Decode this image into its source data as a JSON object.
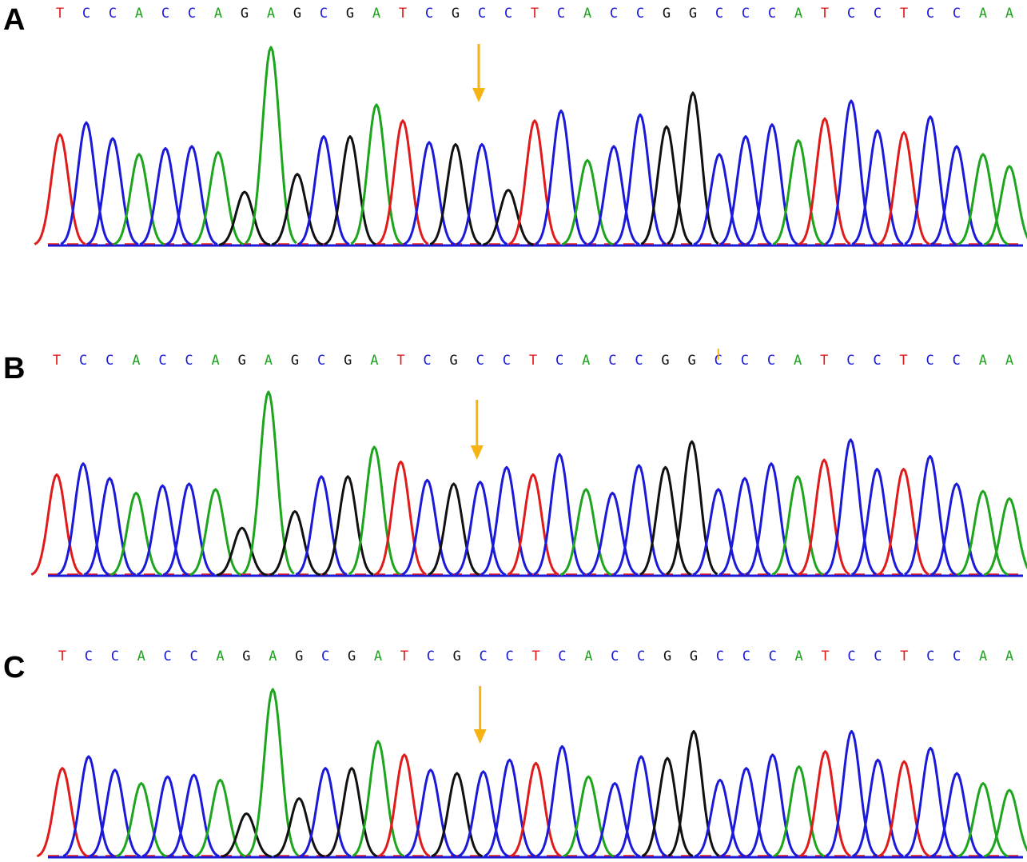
{
  "colors": {
    "A": "#1ea51e",
    "C": "#1a1ad8",
    "G": "#111111",
    "T": "#e01b1b",
    "arrow": "#f5b414"
  },
  "panels": [
    {
      "label": "A",
      "sequence": [
        "T",
        "C",
        "C",
        "A",
        "C",
        "C",
        "A",
        "G",
        "A",
        "G",
        "C",
        "G",
        "A",
        "T",
        "C",
        "G",
        "C",
        "C",
        "T",
        "C",
        "A",
        "C",
        "C",
        "G",
        "G",
        "C",
        "C",
        "C",
        "A",
        "T",
        "C",
        "C",
        "T",
        "C",
        "C",
        "A",
        "A"
      ],
      "peak_bases": [
        "T",
        "C",
        "C",
        "A",
        "C",
        "C",
        "A",
        "G",
        "A",
        "G",
        "C",
        "G",
        "A",
        "T",
        "C",
        "G",
        "C",
        "G",
        "T",
        "C",
        "A",
        "C",
        "C",
        "G",
        "G",
        "C",
        "C",
        "C",
        "A",
        "T",
        "C",
        "C",
        "T",
        "C",
        "C",
        "A",
        "A"
      ],
      "peak_heights": [
        0.56,
        0.62,
        0.54,
        0.46,
        0.49,
        0.5,
        0.47,
        0.27,
        1.0,
        0.36,
        0.55,
        0.55,
        0.71,
        0.63,
        0.52,
        0.51,
        0.51,
        0.28,
        0.63,
        0.68,
        0.43,
        0.5,
        0.66,
        0.6,
        0.77,
        0.46,
        0.55,
        0.61,
        0.53,
        0.64,
        0.73,
        0.58,
        0.57,
        0.65,
        0.5,
        0.46,
        0.4
      ],
      "arrow_index": 16,
      "tick_index": null
    },
    {
      "label": "B",
      "sequence": [
        "T",
        "C",
        "C",
        "A",
        "C",
        "C",
        "A",
        "G",
        "A",
        "G",
        "C",
        "G",
        "A",
        "T",
        "C",
        "G",
        "C",
        "C",
        "T",
        "C",
        "A",
        "C",
        "C",
        "G",
        "G",
        "C",
        "C",
        "C",
        "A",
        "T",
        "C",
        "C",
        "T",
        "C",
        "C",
        "A",
        "A"
      ],
      "peak_bases": [
        "T",
        "C",
        "C",
        "A",
        "C",
        "C",
        "A",
        "G",
        "A",
        "G",
        "C",
        "G",
        "A",
        "T",
        "C",
        "G",
        "C",
        "C",
        "T",
        "C",
        "A",
        "C",
        "C",
        "G",
        "G",
        "C",
        "C",
        "C",
        "A",
        "T",
        "C",
        "C",
        "T",
        "C",
        "C",
        "A",
        "A"
      ],
      "peak_heights": [
        0.55,
        0.61,
        0.53,
        0.45,
        0.49,
        0.5,
        0.47,
        0.26,
        1.0,
        0.35,
        0.54,
        0.54,
        0.7,
        0.62,
        0.52,
        0.5,
        0.51,
        0.59,
        0.55,
        0.66,
        0.47,
        0.45,
        0.6,
        0.59,
        0.73,
        0.47,
        0.53,
        0.61,
        0.54,
        0.63,
        0.74,
        0.58,
        0.58,
        0.65,
        0.5,
        0.46,
        0.42
      ],
      "arrow_index": 16,
      "tick_index": 25
    },
    {
      "label": "C",
      "sequence": [
        "T",
        "C",
        "C",
        "A",
        "C",
        "C",
        "A",
        "G",
        "A",
        "G",
        "C",
        "G",
        "A",
        "T",
        "C",
        "G",
        "C",
        "C",
        "T",
        "C",
        "A",
        "C",
        "C",
        "G",
        "G",
        "C",
        "C",
        "C",
        "A",
        "T",
        "C",
        "C",
        "T",
        "C",
        "C",
        "A",
        "A"
      ],
      "peak_bases": [
        "T",
        "C",
        "C",
        "A",
        "C",
        "C",
        "A",
        "G",
        "A",
        "G",
        "C",
        "G",
        "A",
        "T",
        "C",
        "G",
        "C",
        "C",
        "T",
        "C",
        "A",
        "C",
        "C",
        "G",
        "G",
        "C",
        "C",
        "C",
        "A",
        "T",
        "C",
        "C",
        "T",
        "C",
        "C",
        "A",
        "A"
      ],
      "peak_heights": [
        0.53,
        0.6,
        0.52,
        0.44,
        0.48,
        0.49,
        0.46,
        0.26,
        1.0,
        0.35,
        0.53,
        0.53,
        0.69,
        0.61,
        0.52,
        0.5,
        0.51,
        0.58,
        0.56,
        0.66,
        0.48,
        0.44,
        0.6,
        0.59,
        0.75,
        0.46,
        0.53,
        0.61,
        0.54,
        0.63,
        0.75,
        0.58,
        0.57,
        0.65,
        0.5,
        0.44,
        0.4
      ],
      "arrow_index": 16,
      "tick_index": null
    }
  ]
}
